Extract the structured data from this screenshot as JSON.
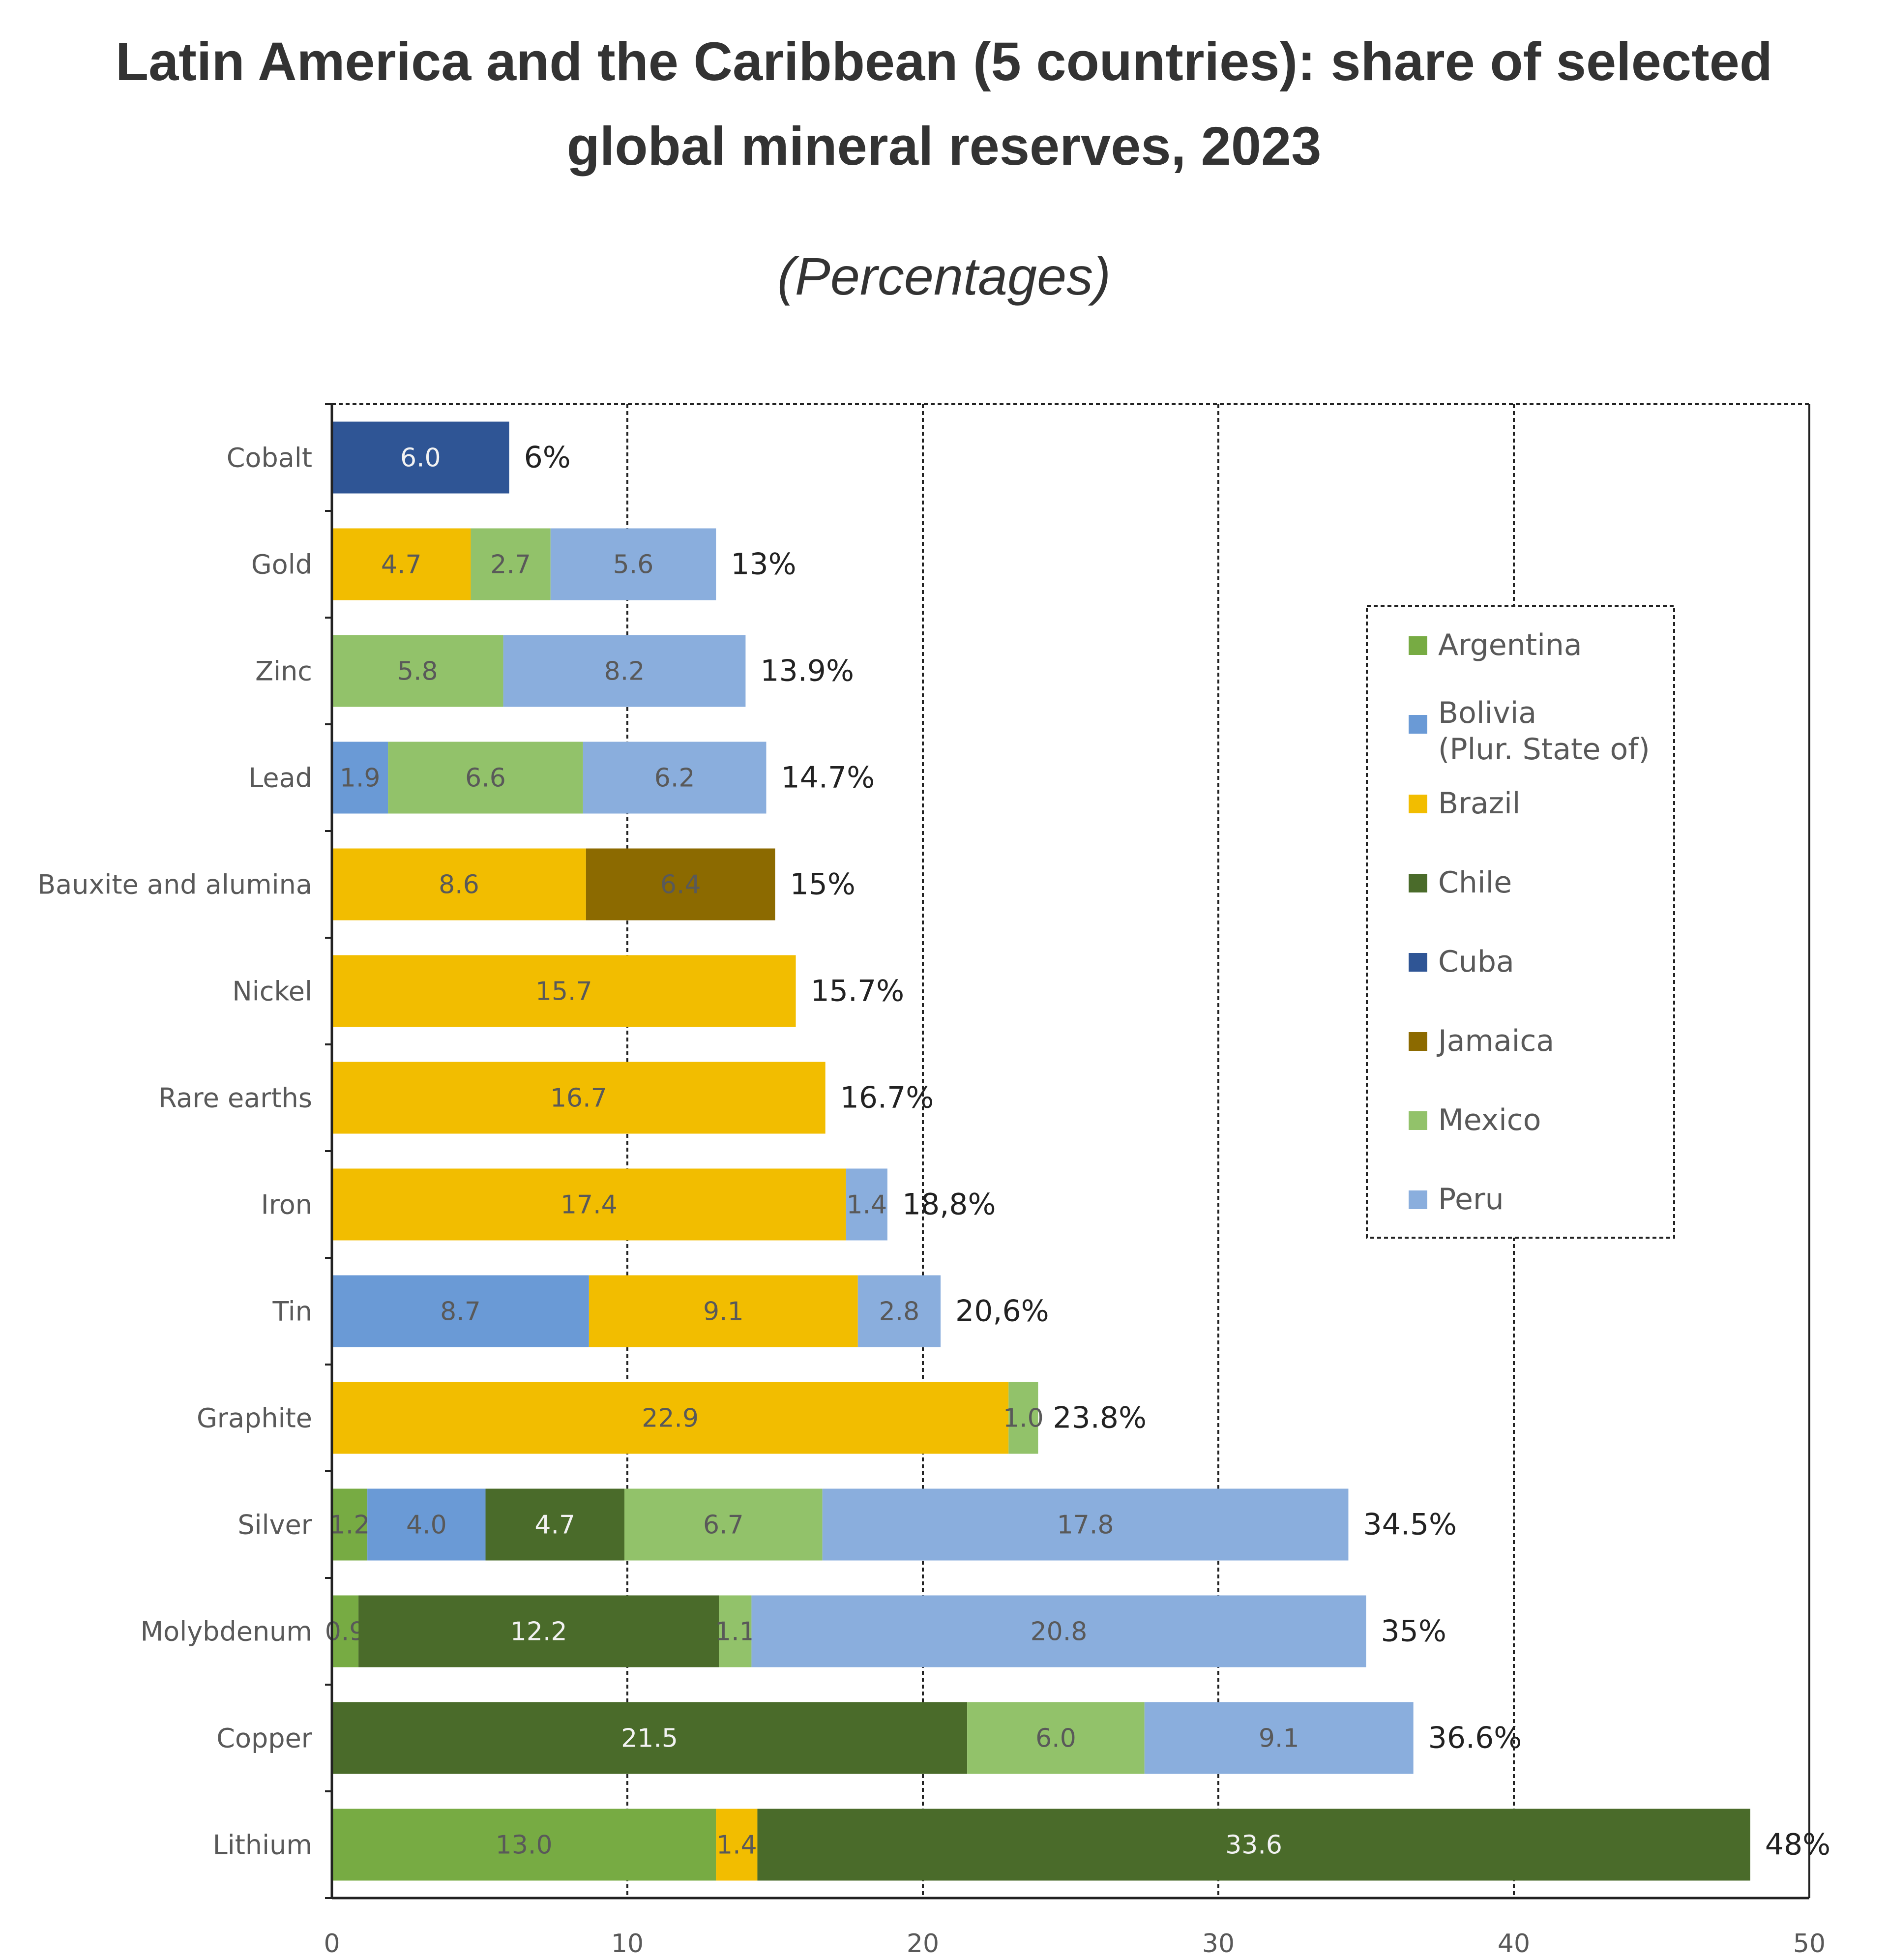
{
  "title": "Latin America and the Caribbean (5 countries): share of selected global mineral reserves, 2023",
  "subtitle": "(Percentages)",
  "colors": {
    "Argentina": "#77ab43",
    "Bolivia (Plur. State of)": "#6a9ad6",
    "Brazil": "#f2bd00",
    "Chile": "#4a6b2a",
    "Cuba": "#2f5595",
    "Jamaica": "#8c6a00",
    "Mexico": "#92c26a",
    "Peru": "#8aaedd"
  },
  "chart_data": {
    "type": "bar",
    "orientation": "horizontal",
    "stacked": true,
    "title": "Latin America and the Caribbean (5 countries): share of selected global mineral reserves, 2023",
    "subtitle": "(Percentages)",
    "xlabel": "",
    "ylabel": "",
    "xlim": [
      0,
      50
    ],
    "xticks": [
      0,
      10,
      20,
      30,
      40,
      50
    ],
    "grid": "vertical dashed",
    "legend_position": "right",
    "legend": [
      "Argentina",
      "Bolivia\n(Plur. State of)",
      "Brazil",
      "Chile",
      "Cuba",
      "Jamaica",
      "Mexico",
      "Peru"
    ],
    "categories": [
      "Cobalt",
      "Gold",
      "Zinc",
      "Lead",
      "Bauxite and alumina",
      "Nickel",
      "Rare earths",
      "Iron",
      "Tin",
      "Graphite",
      "Silver",
      "Molybdenum",
      "Copper",
      "Lithium"
    ],
    "bars": [
      {
        "category": "Cobalt",
        "total_label": "6%",
        "segments": [
          {
            "series": "Cuba",
            "value": 6.0,
            "label": "6.0"
          }
        ]
      },
      {
        "category": "Gold",
        "total_label": "13%",
        "segments": [
          {
            "series": "Brazil",
            "value": 4.7,
            "label": "4.7"
          },
          {
            "series": "Mexico",
            "value": 2.7,
            "label": "2.7"
          },
          {
            "series": "Peru",
            "value": 5.6,
            "label": "5.6"
          }
        ]
      },
      {
        "category": "Zinc",
        "total_label": "13.9%",
        "segments": [
          {
            "series": "Mexico",
            "value": 5.8,
            "label": "5.8"
          },
          {
            "series": "Peru",
            "value": 8.2,
            "label": "8.2"
          }
        ]
      },
      {
        "category": "Lead",
        "total_label": "14.7%",
        "segments": [
          {
            "series": "Bolivia (Plur. State of)",
            "value": 1.9,
            "label": "1.9"
          },
          {
            "series": "Mexico",
            "value": 6.6,
            "label": "6.6"
          },
          {
            "series": "Peru",
            "value": 6.2,
            "label": "6.2"
          }
        ]
      },
      {
        "category": "Bauxite and alumina",
        "total_label": "15%",
        "segments": [
          {
            "series": "Brazil",
            "value": 8.6,
            "label": "8.6"
          },
          {
            "series": "Jamaica",
            "value": 6.4,
            "label": "6.4"
          }
        ]
      },
      {
        "category": "Nickel",
        "total_label": "15.7%",
        "segments": [
          {
            "series": "Brazil",
            "value": 15.7,
            "label": "15.7"
          }
        ]
      },
      {
        "category": "Rare earths",
        "total_label": "16.7%",
        "segments": [
          {
            "series": "Brazil",
            "value": 16.7,
            "label": "16.7"
          }
        ]
      },
      {
        "category": "Iron",
        "total_label": "18,8%",
        "segments": [
          {
            "series": "Brazil",
            "value": 17.4,
            "label": "17.4"
          },
          {
            "series": "Peru",
            "value": 1.4,
            "label": "1.4"
          }
        ]
      },
      {
        "category": "Tin",
        "total_label": "20,6%",
        "segments": [
          {
            "series": "Bolivia (Plur. State of)",
            "value": 8.7,
            "label": "8.7"
          },
          {
            "series": "Brazil",
            "value": 9.1,
            "label": "9.1"
          },
          {
            "series": "Peru",
            "value": 2.8,
            "label": "2.8"
          }
        ]
      },
      {
        "category": "Graphite",
        "total_label": "23.8%",
        "segments": [
          {
            "series": "Brazil",
            "value": 22.9,
            "label": "22.9"
          },
          {
            "series": "Mexico",
            "value": 1.0,
            "label": "1.0"
          }
        ]
      },
      {
        "category": "Silver",
        "total_label": "34.5%",
        "segments": [
          {
            "series": "Argentina",
            "value": 1.2,
            "label": "1.2"
          },
          {
            "series": "Bolivia (Plur. State of)",
            "value": 4.0,
            "label": "4.0"
          },
          {
            "series": "Chile",
            "value": 4.7,
            "label": "4.7"
          },
          {
            "series": "Mexico",
            "value": 6.7,
            "label": "6.7"
          },
          {
            "series": "Peru",
            "value": 17.8,
            "label": "17.8"
          }
        ]
      },
      {
        "category": "Molybdenum",
        "total_label": "35%",
        "segments": [
          {
            "series": "Argentina",
            "value": 0.9,
            "label": "0.9"
          },
          {
            "series": "Chile",
            "value": 12.2,
            "label": "12.2"
          },
          {
            "series": "Mexico",
            "value": 1.1,
            "label": "1.1"
          },
          {
            "series": "Peru",
            "value": 20.8,
            "label": "20.8"
          }
        ]
      },
      {
        "category": "Copper",
        "total_label": "36.6%",
        "segments": [
          {
            "series": "Chile",
            "value": 21.5,
            "label": "21.5"
          },
          {
            "series": "Mexico",
            "value": 6.0,
            "label": "6.0"
          },
          {
            "series": "Peru",
            "value": 9.1,
            "label": "9.1"
          }
        ]
      },
      {
        "category": "Lithium",
        "total_label": "48%",
        "segments": [
          {
            "series": "Argentina",
            "value": 13.0,
            "label": "13.0"
          },
          {
            "series": "Brazil",
            "value": 1.4,
            "label": "1.4"
          },
          {
            "series": "Chile",
            "value": 33.6,
            "label": "33.6"
          }
        ]
      }
    ]
  }
}
